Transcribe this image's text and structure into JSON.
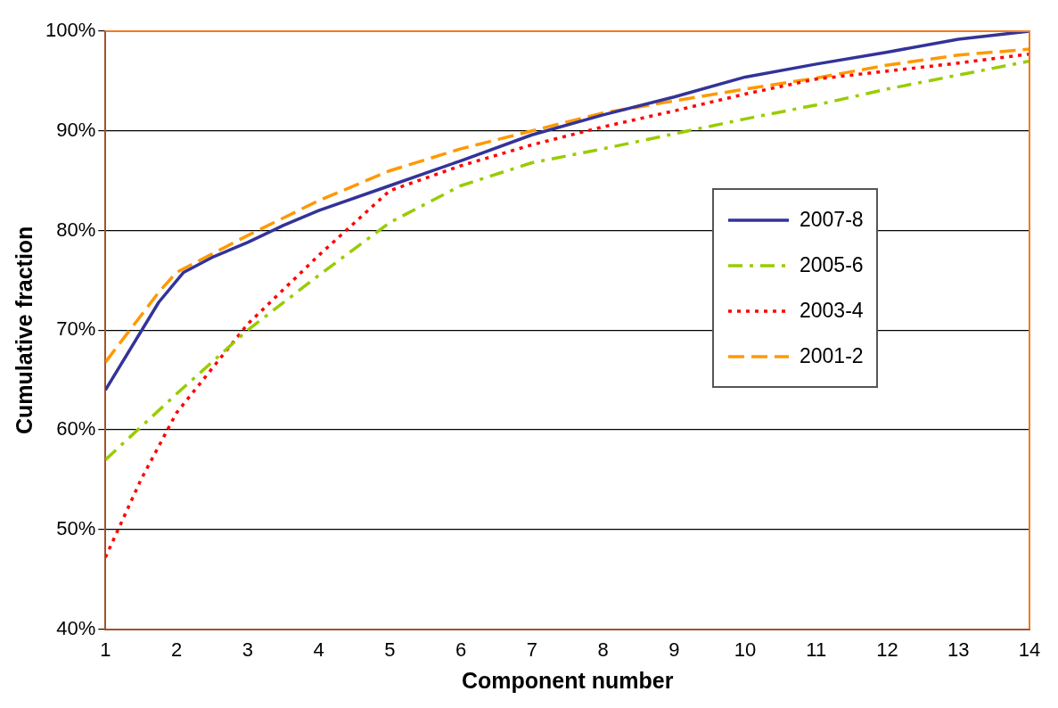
{
  "chart_data": {
    "type": "line",
    "xlabel": "Component number",
    "ylabel": "Cumulative fraction",
    "xlim": [
      1,
      14
    ],
    "xticks": [
      1,
      2,
      3,
      4,
      5,
      6,
      7,
      8,
      9,
      10,
      11,
      12,
      13,
      14
    ],
    "ylim": [
      40,
      100
    ],
    "yticks": [
      {
        "value": 40,
        "label": "40%"
      },
      {
        "value": 50,
        "label": "50%"
      },
      {
        "value": 60,
        "label": "60%"
      },
      {
        "value": 70,
        "label": "70%"
      },
      {
        "value": 80,
        "label": "80%"
      },
      {
        "value": 90,
        "label": "90%"
      },
      {
        "value": 100,
        "label": "100%"
      }
    ],
    "grid": "y",
    "legend": "right",
    "marker": "none",
    "series": [
      {
        "name": "2007-8",
        "color": "#333399",
        "line_style": "solid",
        "x": [
          1,
          1.75,
          2.1,
          2.5,
          3,
          3.5,
          4,
          5,
          6,
          7,
          8,
          9,
          10,
          11,
          12,
          13,
          14
        ],
        "values": [
          64,
          72.8,
          75.8,
          77.3,
          78.8,
          80.5,
          82,
          84.5,
          87,
          89.6,
          91.6,
          93.4,
          95.4,
          96.7,
          97.9,
          99.2,
          100
        ]
      },
      {
        "name": "2005-6",
        "color": "#99cc00",
        "line_style": "dashdot",
        "x": [
          1,
          2,
          3,
          4,
          5,
          6,
          7,
          8,
          9,
          10,
          11,
          12,
          13,
          14
        ],
        "values": [
          57,
          63.6,
          70,
          75.5,
          80.8,
          84.5,
          86.8,
          88.2,
          89.7,
          91.2,
          92.6,
          94.2,
          95.6,
          97
        ]
      },
      {
        "name": "2003-4",
        "color": "#ff0000",
        "line_style": "dotted",
        "x": [
          1,
          1.5,
          2,
          3,
          4,
          5,
          6,
          7,
          8,
          9,
          10,
          11,
          12,
          13,
          14
        ],
        "values": [
          47.2,
          55,
          61.7,
          70.6,
          77.5,
          84,
          86.5,
          88.6,
          90.4,
          92,
          93.7,
          95.2,
          96,
          96.8,
          97.7
        ]
      },
      {
        "name": "2001-2",
        "color": "#ff9900",
        "line_style": "dashed",
        "x": [
          1,
          1.75,
          2,
          3,
          4,
          5,
          6,
          7,
          8,
          9,
          10,
          11,
          12,
          13,
          14
        ],
        "values": [
          66.8,
          73.8,
          75.8,
          79.5,
          83,
          86,
          88.2,
          90,
          91.8,
          93,
          94.2,
          95.3,
          96.6,
          97.6,
          98.2
        ]
      }
    ]
  }
}
